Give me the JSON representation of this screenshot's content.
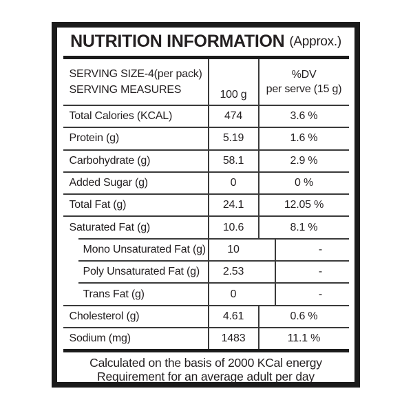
{
  "title": {
    "main": "NUTRITION INFORMATION",
    "suffix": "(Approx.)"
  },
  "table_header": {
    "serving_line1": "SERVING SIZE-4(per pack)",
    "serving_line2": "SERVING MEASURES",
    "per_100g": "100 g",
    "dv_line1": "%DV",
    "dv_line2": "per serve (15 g)"
  },
  "rows": [
    {
      "label": "Total Calories (KCAL)",
      "per100g": "474",
      "dv": "3.6 %",
      "indent": false
    },
    {
      "label": "Protein (g)",
      "per100g": "5.19",
      "dv": "1.6 %",
      "indent": false
    },
    {
      "label": "Carbohydrate (g)",
      "per100g": "58.1",
      "dv": "2.9 %",
      "indent": false
    },
    {
      "label": "Added Sugar (g)",
      "per100g": "0",
      "dv": "0 %",
      "indent": false
    },
    {
      "label": "Total Fat (g)",
      "per100g": "24.1",
      "dv": "12.05 %",
      "indent": false
    },
    {
      "label": "Saturated Fat (g)",
      "per100g": "10.6",
      "dv": "8.1 %",
      "indent": false
    },
    {
      "label": "Mono Unsaturated Fat (g)",
      "per100g": "10",
      "dv": "-",
      "indent": true
    },
    {
      "label": "Poly Unsaturated Fat (g)",
      "per100g": "2.53",
      "dv": "-",
      "indent": true
    },
    {
      "label": "Trans Fat (g)",
      "per100g": "0",
      "dv": "-",
      "indent": true
    },
    {
      "label": "Cholesterol (g)",
      "per100g": "4.61",
      "dv": "0.6 %",
      "indent": false
    },
    {
      "label": "Sodium (mg)",
      "per100g": "1483",
      "dv": "11.1 %",
      "indent": false
    }
  ],
  "footer": {
    "line1": "Calculated on the basis of 2000 KCal energy",
    "line2": "Requirement for an average adult per day"
  },
  "colors": {
    "text": "#231f20",
    "rule": "#3a3a3a",
    "frame": "#1b1b1b",
    "background": "#ffffff"
  }
}
